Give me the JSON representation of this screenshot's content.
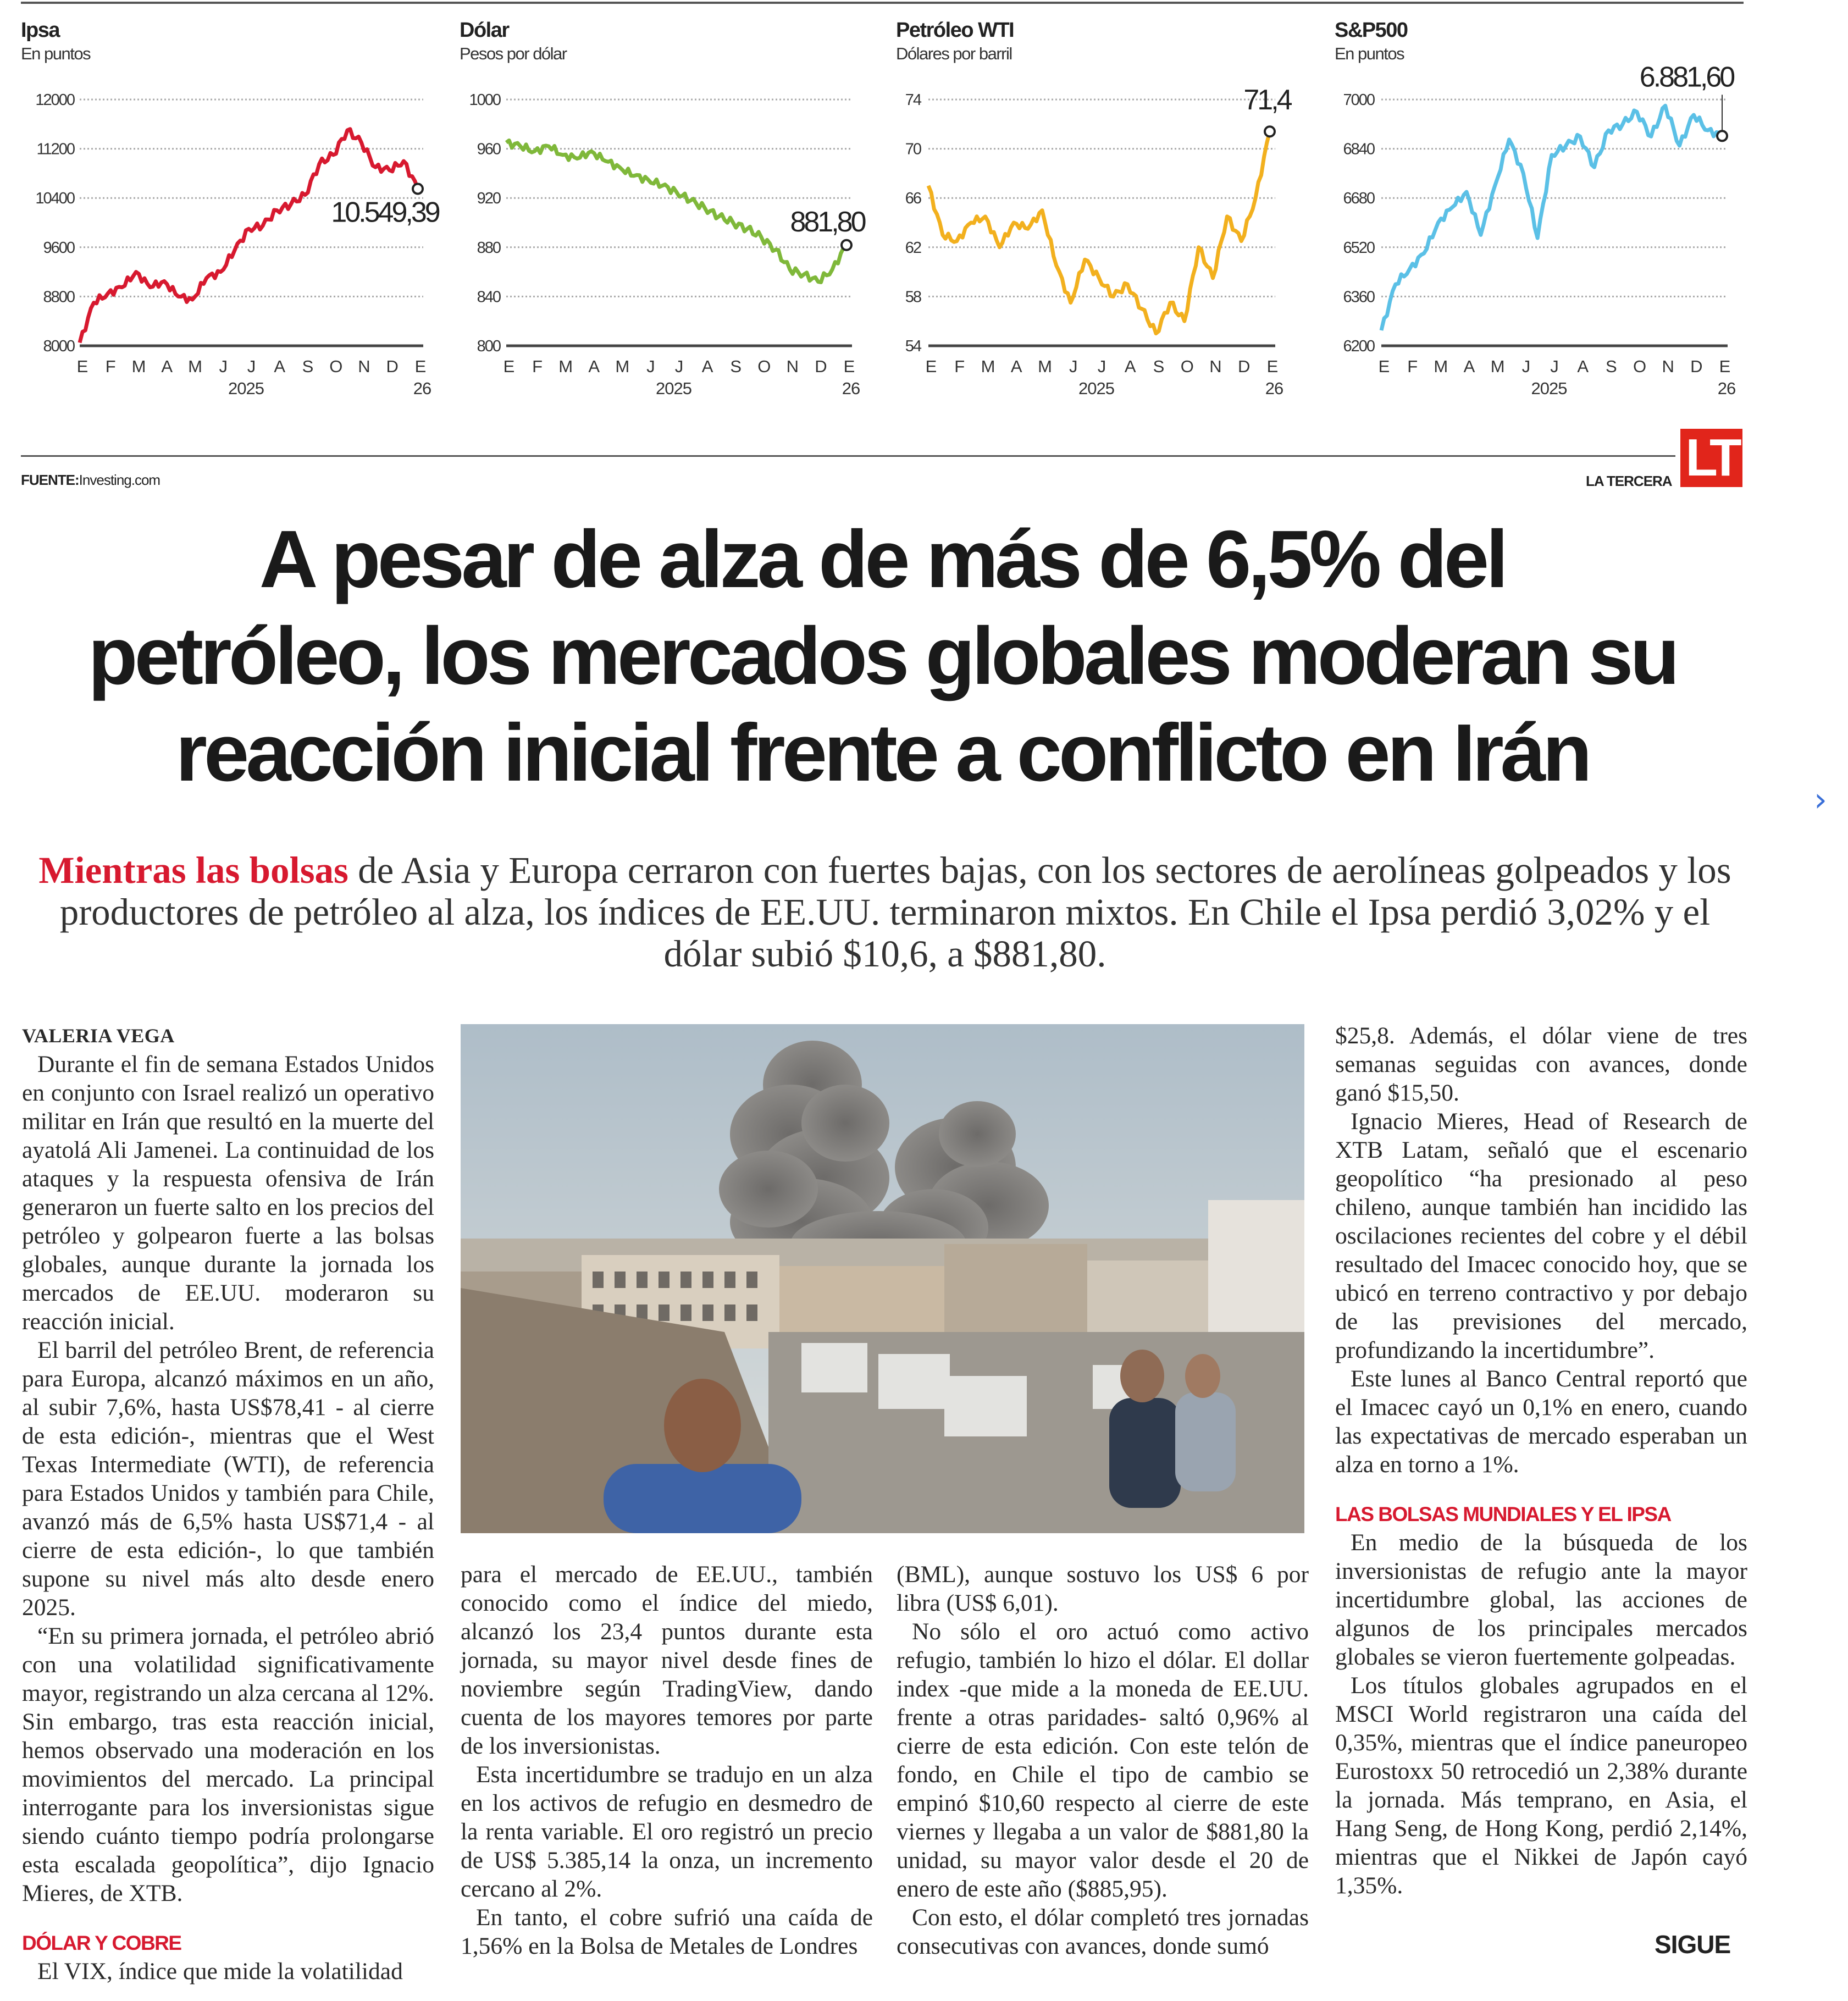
{
  "charts_section": {
    "source_label": "FUENTE:",
    "source_value": "Investing.com",
    "brand": "LA TERCERA",
    "logo": "LT",
    "logo_color": "#e1251b"
  },
  "chart_data": [
    {
      "type": "line",
      "title": "Ipsa",
      "subtitle": "En puntos",
      "color": "#d7192f",
      "ylim": [
        8000,
        12000
      ],
      "yticks": [
        "12000",
        "11200",
        "10400",
        "9600",
        "8800",
        "8000"
      ],
      "ytick_values": [
        12000,
        11200,
        10400,
        9600,
        8800,
        8000
      ],
      "xticks": [
        "E",
        "F",
        "M",
        "A",
        "M",
        "J",
        "J",
        "A",
        "S",
        "O",
        "N",
        "D",
        "E"
      ],
      "xyear_labels": [
        "2025",
        "26"
      ],
      "xlim": [
        "2025-01",
        "2026-01"
      ],
      "grid": true,
      "last_value_label": "10.549,39",
      "values": [
        8050,
        8700,
        8850,
        8950,
        9200,
        8950,
        9050,
        8800,
        8750,
        9100,
        9200,
        9550,
        9900,
        9950,
        10200,
        10300,
        10450,
        10950,
        11100,
        11500,
        11300,
        10900,
        10850,
        11000,
        10549.39
      ]
    },
    {
      "type": "line",
      "title": "Dólar",
      "subtitle": "Pesos por dólar",
      "color": "#7fb83a",
      "ylim": [
        800,
        1000
      ],
      "yticks": [
        "1000",
        "960",
        "920",
        "880",
        "840",
        "800"
      ],
      "ytick_values": [
        1000,
        960,
        920,
        880,
        840,
        800
      ],
      "xticks": [
        "E",
        "F",
        "M",
        "A",
        "M",
        "J",
        "J",
        "A",
        "S",
        "O",
        "N",
        "D",
        "E"
      ],
      "xyear_labels": [
        "2025",
        "26"
      ],
      "xlim": [
        "2025-01",
        "2026-01"
      ],
      "grid": true,
      "last_value_label": "881,80",
      "values": [
        965,
        962,
        958,
        962,
        955,
        952,
        958,
        950,
        945,
        938,
        935,
        930,
        925,
        918,
        912,
        905,
        900,
        895,
        888,
        878,
        862,
        858,
        852,
        862,
        881.8
      ]
    },
    {
      "type": "line",
      "title": "Petróleo WTI",
      "subtitle": "Dólares por barril",
      "color": "#f2b01e",
      "ylim": [
        54,
        74
      ],
      "yticks": [
        "74",
        "70",
        "66",
        "62",
        "58",
        "54"
      ],
      "ytick_values": [
        74,
        70,
        66,
        62,
        58,
        54
      ],
      "xticks": [
        "E",
        "F",
        "M",
        "A",
        "M",
        "J",
        "J",
        "A",
        "S",
        "O",
        "N",
        "D",
        "E"
      ],
      "xyear_labels": [
        "2025",
        "26"
      ],
      "xlim": [
        "2025-01",
        "2026-01"
      ],
      "grid": true,
      "last_value_label": "71,4",
      "values": [
        67,
        63,
        62.5,
        64,
        64.5,
        62,
        64,
        63.5,
        65,
        60.5,
        57.5,
        61,
        59.5,
        58,
        59,
        57,
        55,
        57.5,
        56,
        62,
        59.5,
        64.5,
        62.5,
        66,
        71.4
      ]
    },
    {
      "type": "line",
      "title": "S&P500",
      "subtitle": "En puntos",
      "color": "#5bc0e6",
      "ylim": [
        6200,
        7000
      ],
      "yticks": [
        "7000",
        "6840",
        "6680",
        "6520",
        "6360",
        "6200"
      ],
      "ytick_values": [
        7000,
        6840,
        6680,
        6520,
        6360,
        6200
      ],
      "xticks": [
        "E",
        "F",
        "M",
        "A",
        "M",
        "J",
        "J",
        "A",
        "S",
        "O",
        "N",
        "D",
        "E"
      ],
      "xyear_labels": [
        "2025",
        "26"
      ],
      "xlim": [
        "2025-01",
        "2026-01"
      ],
      "grid": true,
      "last_value_label": "6.881,60",
      "values": [
        6250,
        6400,
        6450,
        6500,
        6600,
        6650,
        6700,
        6560,
        6720,
        6870,
        6760,
        6550,
        6820,
        6850,
        6880,
        6780,
        6900,
        6920,
        6960,
        6880,
        6980,
        6850,
        6950,
        6900,
        6881.6
      ]
    }
  ],
  "article": {
    "headline": [
      "A pesar de alza de más de 6,5% del",
      "petróleo, los mercados globales moderan su",
      "reacción inicial frente a conflicto en Irán"
    ],
    "deck_lead": "Mientras las bolsas",
    "deck_rest": " de Asia y Europa cerraron con fuertes bajas, con los sectores de aerolíneas golpeados y los productores de petróleo al alza, los índices de EE.UU. terminaron mixtos. En Chile el Ipsa perdió 3,02% y el dólar subió $10,6, a $881,80.",
    "byline": "VALERIA VEGA",
    "col1": [
      "Durante el fin de semana Estados Unidos en conjunto con Israel realizó un operativo militar en Irán que resultó en la muerte del ayatolá Ali Jamenei. La continuidad de los ataques y la respuesta ofensiva de Irán generaron un fuerte salto en los precios del petróleo y golpearon fuerte a las bolsas globales, aunque durante la jornada los mercados de EE.UU. moderaron su reacción inicial.",
      "El barril del petróleo Brent, de referencia para Europa, alcanzó máximos en un año, al subir 7,6%, hasta US$78,41 - al cierre de esta edición-, mientras que el West Texas Intermediate (WTI), de referencia para Estados Unidos y también para Chile, avanzó más de 6,5% hasta US$71,4 - al cierre de esta edición-, lo que también supone su nivel más alto desde enero 2025.",
      "“En su primera jornada, el petróleo abrió con una volatilidad significativamente mayor, registrando un alza cercana al 12%. Sin embargo, tras esta reacción inicial, hemos observado una moderación en los movimientos del mercado. La principal interrogante para los inversionistas sigue siendo cuánto tiempo podría prolongarse esta escalada geopolítica”, dijo Ignacio Mieres, de XTB."
    ],
    "subhead1": "DÓLAR Y COBRE",
    "col1_tail": "El VIX, índice que mide la volatilidad",
    "col2": [
      "para el mercado de EE.UU., también conocido como el índice del miedo, alcanzó los 23,4 puntos durante esta jornada, su mayor nivel desde fines de noviembre según TradingView, dando cuenta de los mayores temores por parte de los inversionistas.",
      "Esta incertidumbre se tradujo en un alza en los activos de refugio en desmedro de la renta variable. El oro registró un precio de US$ 5.385,14 la onza, un incremento cercano al 2%.",
      "En tanto, el cobre sufrió una caída de 1,56% en la Bolsa de Metales de Londres"
    ],
    "col3": [
      "(BML), aunque sostuvo los US$ 6 por libra (US$ 6,01).",
      "No sólo el oro actuó como activo refugio, también lo hizo el dólar. El dollar index -que mide a la moneda de EE.UU. frente a otras paridades- saltó 0,96% al cierre de esta edición. Con este telón de fondo, en Chile el tipo de cambio se empinó $10,60 respecto al cierre de este viernes y llegaba a un valor de $881,80 la unidad, su mayor valor desde el 20 de enero de este año ($885,95).",
      "Con esto, el dólar completó tres jornadas consecutivas con avances, donde sumó"
    ],
    "col4": [
      "$25,8. Además, el dólar viene de tres semanas seguidas con avances, donde ganó $15,50.",
      "Ignacio Mieres, Head of Research de XTB Latam, señaló que el escenario geopolítico “ha presionado al peso chileno, aunque también han incidido las oscilaciones recientes del cobre y el débil resultado del Imacec conocido hoy, que se ubicó en terreno contractivo y por debajo de las previsiones del mercado, profundizando la incertidumbre”.",
      "Este lunes al Banco Central reportó que el Imacec cayó un 0,1% en enero, cuando las expectativas de mercado esperaban un alza en torno a 1%."
    ],
    "subhead2": "LAS BOLSAS MUNDIALES Y EL IPSA",
    "col4b": [
      "En medio de la búsqueda de los inversionistas de refugio ante la mayor incertidumbre global, las acciones de algunos de los principales mercados globales se vieron fuertemente golpeadas.",
      "Los títulos globales agrupados en el MSCI World registraron una caída del 0,35%, mientras que el índice paneuropeo Eurostoxx 50 retrocedió un 2,38% durante la jornada. Más temprano, en Asia, el Hang Seng, de Hong Kong, perdió 2,14%, mientras que el Nikkei de Japón cayó 1,35%."
    ],
    "continue_label": "SIGUE",
    "accent_color": "#d7192f"
  },
  "nav": {
    "next_icon": "chevron-right-icon",
    "next_glyph": "›"
  }
}
